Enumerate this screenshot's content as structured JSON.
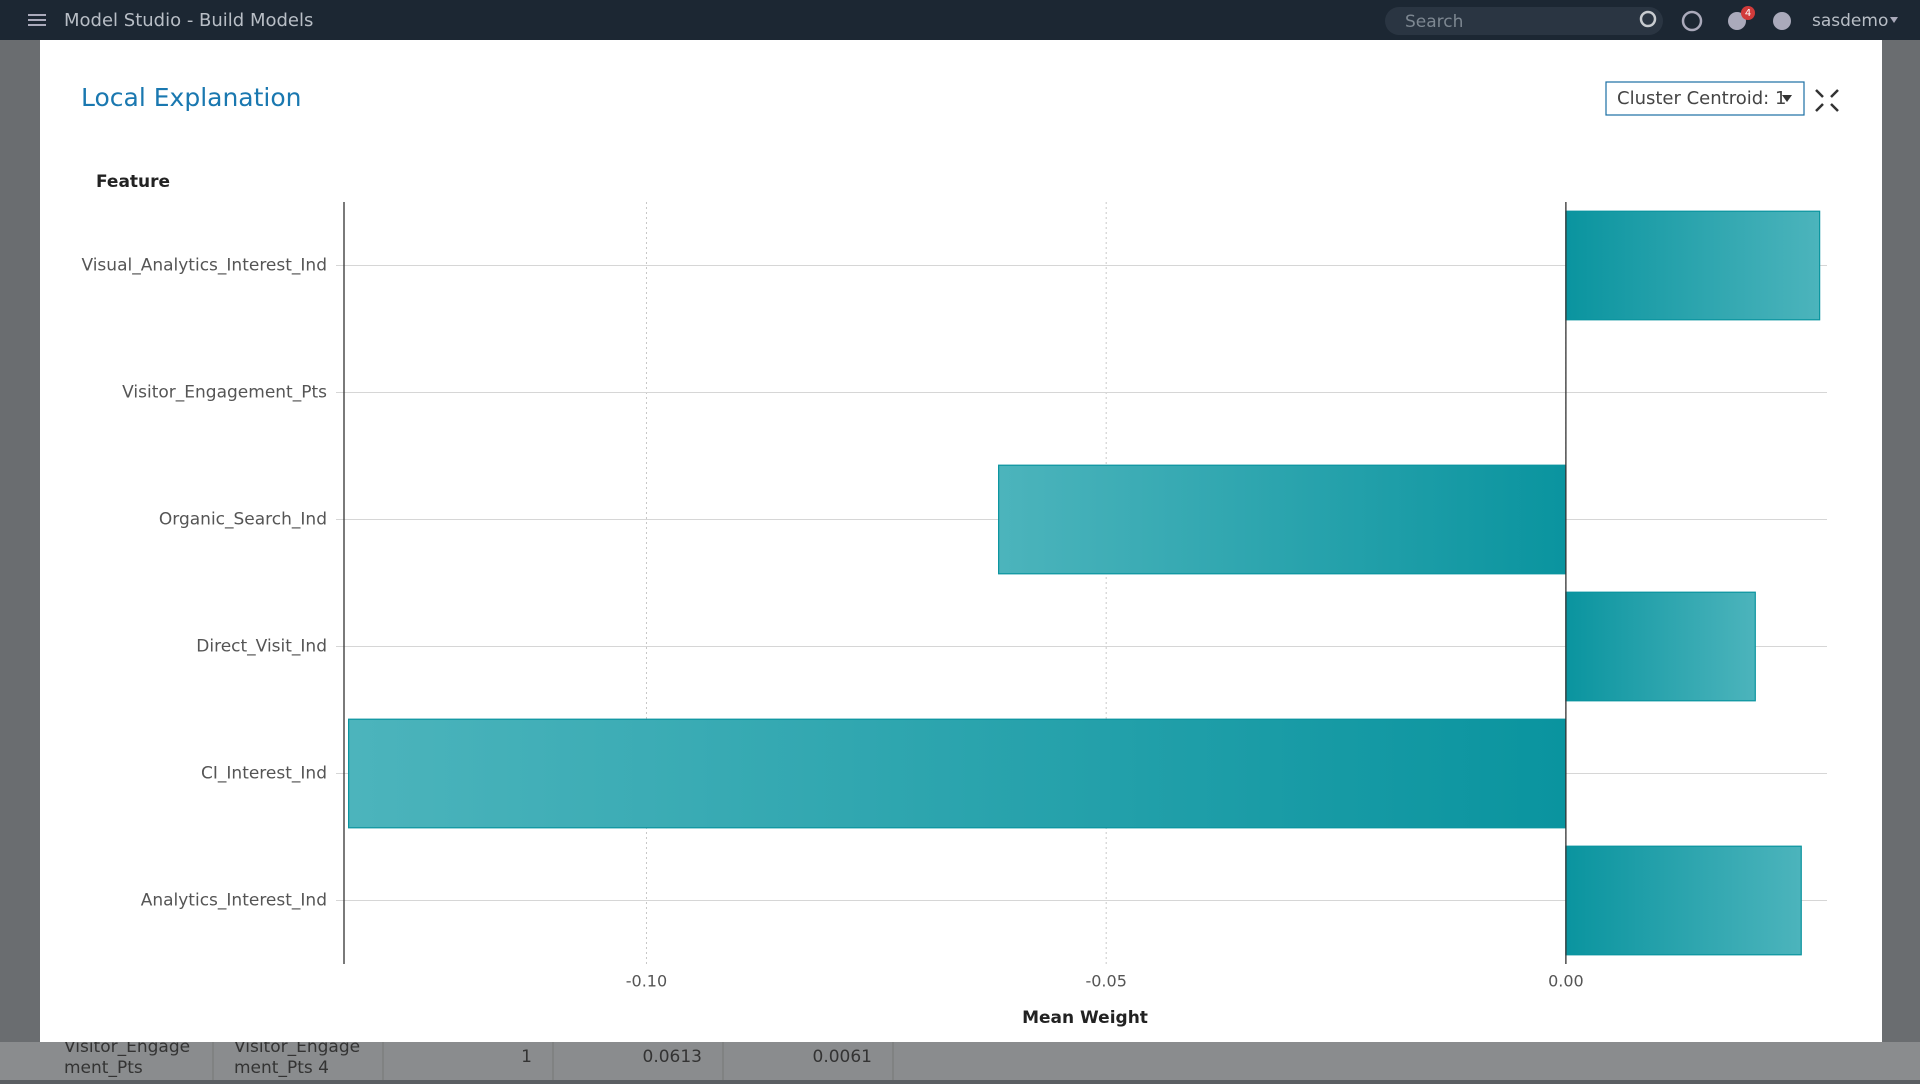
{
  "app": {
    "title": "Model Studio - Build Models",
    "search_placeholder": "Search",
    "notification_count": "4",
    "user": "sasdemo"
  },
  "dialog": {
    "title": "Local Explanation",
    "dropdown": "Cluster Centroid: 1"
  },
  "background_table": {
    "cells": [
      [
        "Visitor_Engage",
        "ment_Pts"
      ],
      [
        "Visitor_Engage",
        "ment_Pts 4"
      ],
      "1",
      "0.0613",
      "0.0061"
    ]
  },
  "chart_data": {
    "type": "hbar",
    "y_label": "Feature",
    "x_label": "Mean Weight",
    "categories": [
      "Visual_Analytics_Interest_Ind",
      "Visitor_Engagement_Pts",
      "Organic_Search_Ind",
      "Direct_Visit_Ind",
      "CI_Interest_Ind",
      "Analytics_Interest_Ind"
    ],
    "values": [
      0.0276,
      0,
      -0.0617,
      0.0206,
      -0.1324,
      0.0256
    ],
    "color": "#0a949f",
    "xlim": [
      -0.1329,
      0.0284
    ],
    "xticks": [
      {
        "value": -0.1,
        "label": "-0.10"
      },
      {
        "value": -0.05,
        "label": "-0.05"
      },
      {
        "value": 0,
        "label": "0.00"
      }
    ],
    "grid": true
  }
}
